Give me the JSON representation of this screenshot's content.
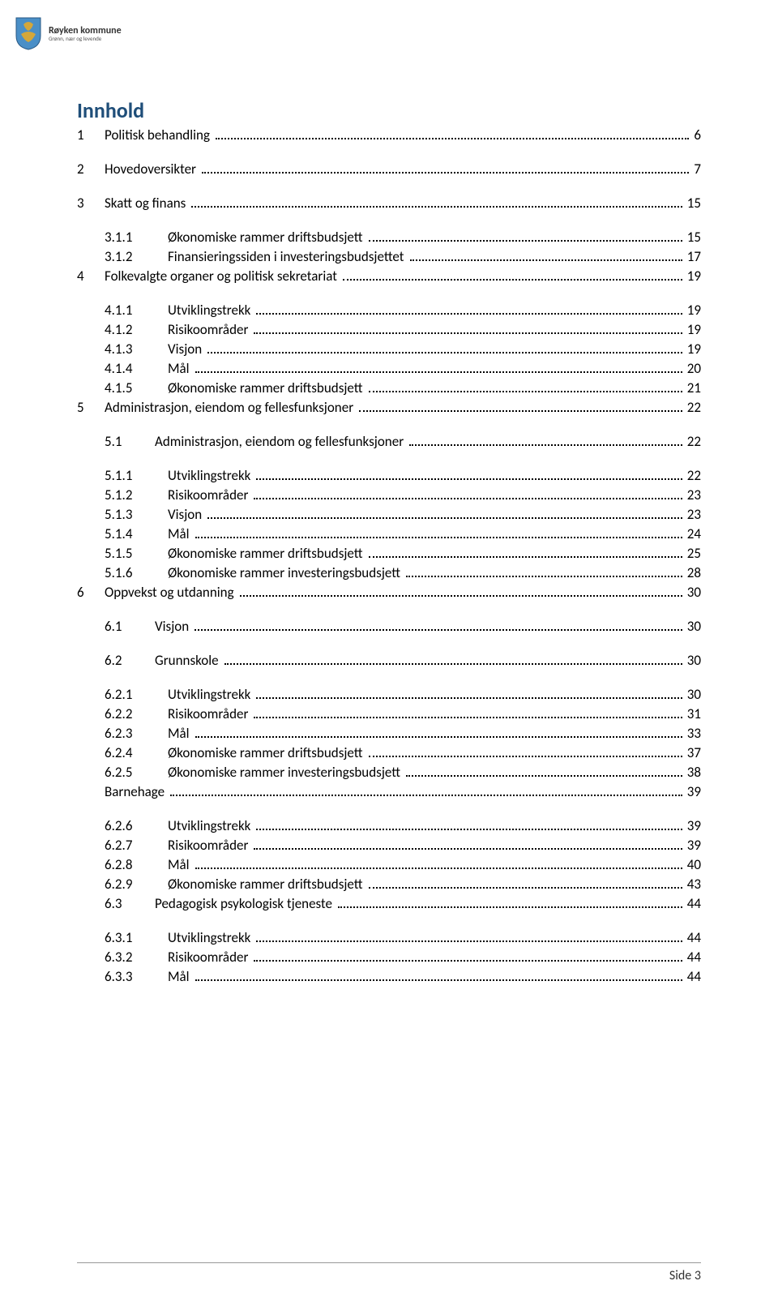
{
  "logo": {
    "name": "Røyken kommune",
    "tagline": "Grønn, nær og levende"
  },
  "title": "Innhold",
  "footer": "Side 3",
  "colors": {
    "heading": "#1f4e79",
    "text": "#000000",
    "shield_blue": "#4a8fc7",
    "shield_gold": "#d4a73a"
  },
  "toc": [
    {
      "level": 0,
      "num": "1",
      "label": "Politisk behandling",
      "page": "6",
      "gap_after": true
    },
    {
      "level": 0,
      "num": "2",
      "label": "Hovedoversikter",
      "page": "7",
      "gap_after": true
    },
    {
      "level": 0,
      "num": "3",
      "label": "Skatt og finans",
      "page": "15",
      "gap_after": true
    },
    {
      "level": 2,
      "num": "3.1.1",
      "label": "Økonomiske rammer driftsbudsjett",
      "page": "15"
    },
    {
      "level": 2,
      "num": "3.1.2",
      "label": "Finansieringssiden i investeringsbudsjettet",
      "page": "17"
    },
    {
      "level": 0,
      "num": "4",
      "label": "Folkevalgte organer og politisk sekretariat",
      "page": "19",
      "gap_after": true
    },
    {
      "level": 2,
      "num": "4.1.1",
      "label": "Utviklingstrekk",
      "page": "19"
    },
    {
      "level": 2,
      "num": "4.1.2",
      "label": "Risikoområder",
      "page": "19"
    },
    {
      "level": 2,
      "num": "4.1.3",
      "label": "Visjon",
      "page": "19"
    },
    {
      "level": 2,
      "num": "4.1.4",
      "label": "Mål",
      "page": "20"
    },
    {
      "level": 2,
      "num": "4.1.5",
      "label": "Økonomiske rammer driftsbudsjett",
      "page": "21"
    },
    {
      "level": 0,
      "num": "5",
      "label": "Administrasjon, eiendom og fellesfunksjoner",
      "page": "22",
      "gap_after": true
    },
    {
      "level": 1,
      "num": "5.1",
      "label": "Administrasjon, eiendom og fellesfunksjoner",
      "page": "22",
      "gap_after": true
    },
    {
      "level": 2,
      "num": "5.1.1",
      "label": "Utviklingstrekk",
      "page": "22"
    },
    {
      "level": 2,
      "num": "5.1.2",
      "label": "Risikoområder",
      "page": "23"
    },
    {
      "level": 2,
      "num": "5.1.3",
      "label": "Visjon",
      "page": "23"
    },
    {
      "level": 2,
      "num": "5.1.4",
      "label": "Mål",
      "page": "24"
    },
    {
      "level": 2,
      "num": "5.1.5",
      "label": "Økonomiske rammer driftsbudsjett",
      "page": "25"
    },
    {
      "level": 2,
      "num": "5.1.6",
      "label": "Økonomiske rammer investeringsbudsjett",
      "page": "28"
    },
    {
      "level": 0,
      "num": "6",
      "label": "Oppvekst og utdanning",
      "page": "30",
      "gap_after": true
    },
    {
      "level": 1,
      "num": "6.1",
      "label": "Visjon",
      "page": "30",
      "gap_after": true
    },
    {
      "level": 1,
      "num": "6.2",
      "label": "Grunnskole",
      "page": "30",
      "gap_after": true
    },
    {
      "level": 2,
      "num": "6.2.1",
      "label": "Utviklingstrekk",
      "page": "30"
    },
    {
      "level": 2,
      "num": "6.2.2",
      "label": "Risikoområder",
      "page": "31"
    },
    {
      "level": 2,
      "num": "6.2.3",
      "label": "Mål",
      "page": "33"
    },
    {
      "level": 2,
      "num": "6.2.4",
      "label": "Økonomiske rammer driftsbudsjett",
      "page": "37"
    },
    {
      "level": 2,
      "num": "6.2.5",
      "label": "Økonomiske rammer investeringsbudsjett",
      "page": "38"
    },
    {
      "level": "1b",
      "num": "",
      "label": "Barnehage",
      "page": "39",
      "gap_after": true
    },
    {
      "level": 2,
      "num": "6.2.6",
      "label": "Utviklingstrekk",
      "page": "39"
    },
    {
      "level": 2,
      "num": "6.2.7",
      "label": "Risikoområder",
      "page": "39"
    },
    {
      "level": 2,
      "num": "6.2.8",
      "label": "Mål",
      "page": "40"
    },
    {
      "level": 2,
      "num": "6.2.9",
      "label": "Økonomiske rammer driftsbudsjett",
      "page": "43"
    },
    {
      "level": 1,
      "num": "6.3",
      "label": "Pedagogisk psykologisk tjeneste",
      "page": "44",
      "gap_after": true
    },
    {
      "level": 2,
      "num": "6.3.1",
      "label": "Utviklingstrekk",
      "page": "44"
    },
    {
      "level": 2,
      "num": "6.3.2",
      "label": "Risikoområder",
      "page": "44"
    },
    {
      "level": 2,
      "num": "6.3.3",
      "label": "Mål",
      "page": "44"
    }
  ]
}
